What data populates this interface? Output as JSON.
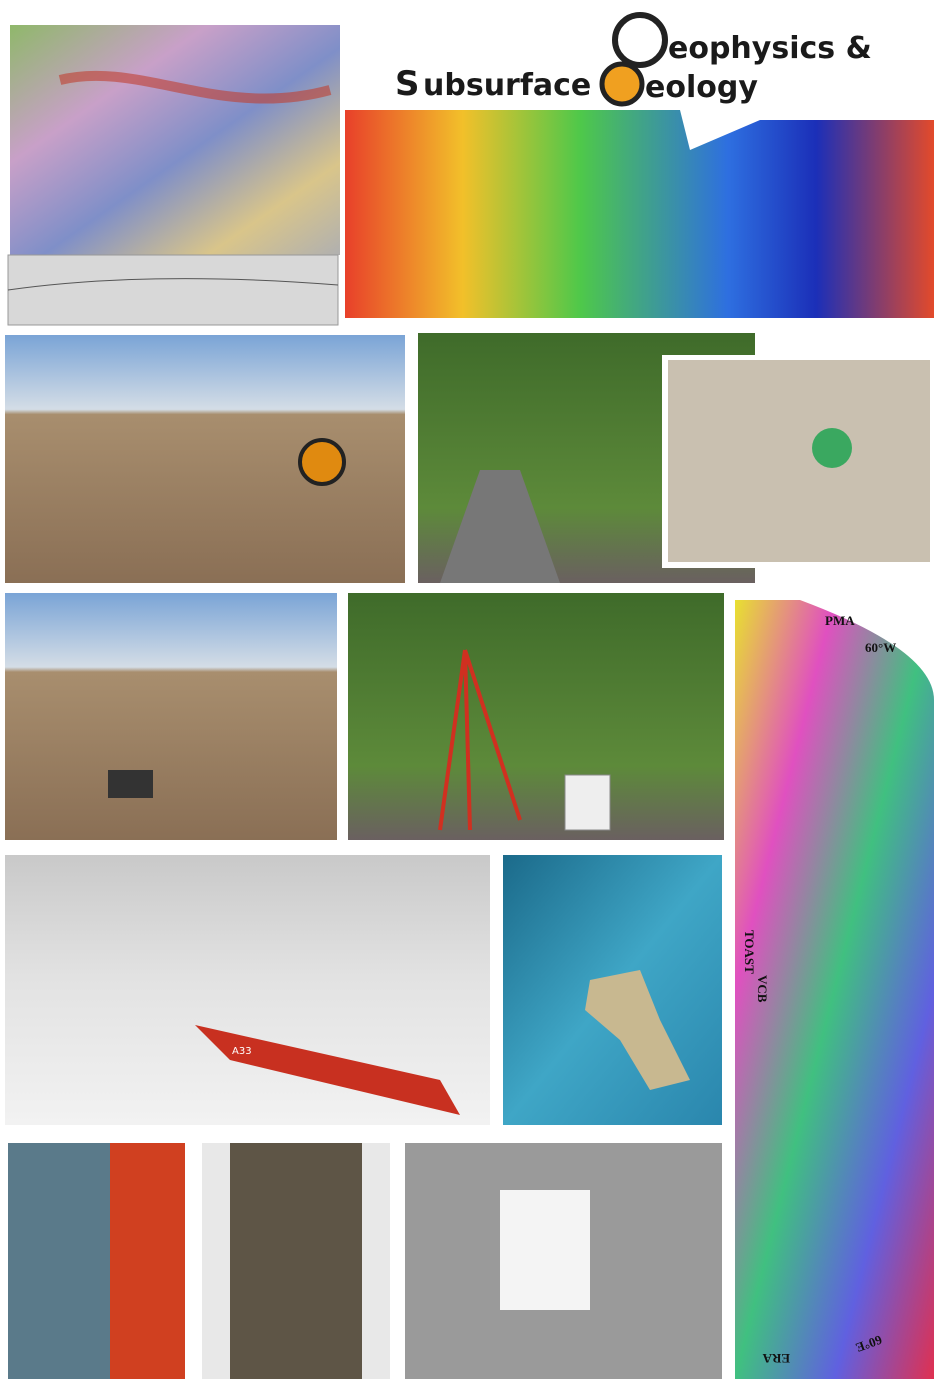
{
  "logo": {
    "line1": "eophysics &",
    "line2": "ubsurface",
    "line3": "eology"
  },
  "ship_label": "A33",
  "magnetic_map": {
    "labels": [
      "PMA",
      "60°W",
      "TOAST",
      "VCB",
      "ERA",
      "60°E"
    ]
  }
}
